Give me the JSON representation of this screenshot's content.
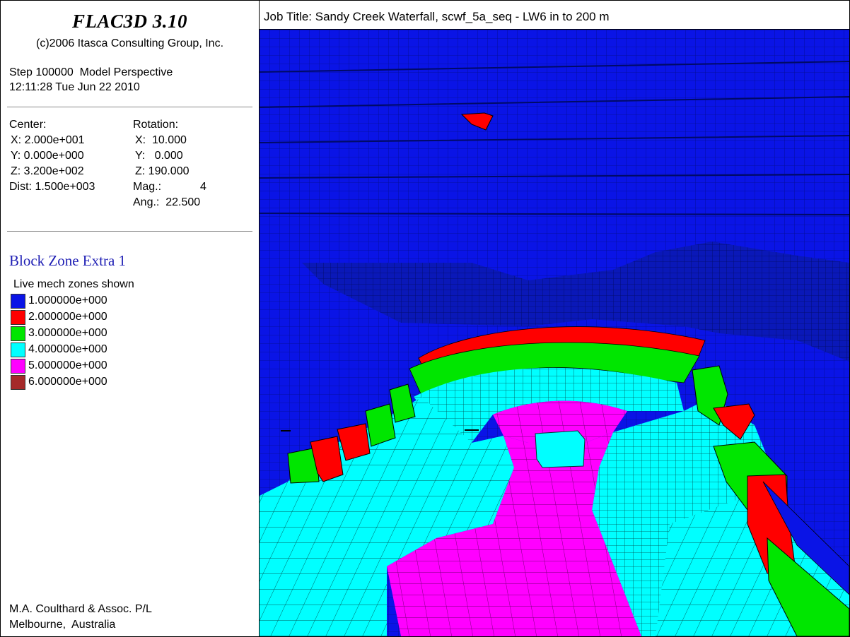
{
  "app": {
    "title": "FLAC3D 3.10",
    "copyright": "(c)2006 Itasca Consulting Group, Inc."
  },
  "step": {
    "line": "Step 100000  Model Perspective",
    "time": "12:11:28 Tue Jun 22 2010"
  },
  "view": {
    "center_label": "Center:",
    "rotation_label": "Rotation:",
    "center_x": "X: 2.000e+001",
    "center_y": "Y: 0.000e+000",
    "center_z": "Z: 3.200e+002",
    "dist": "Dist: 1.500e+003",
    "rot_x": "X:  10.000",
    "rot_y": "Y:   0.000",
    "rot_z": "Z: 190.000",
    "mag_label": "Mag.:",
    "mag_value": "4",
    "ang": "Ang.:  22.500"
  },
  "plot": {
    "title": "Block Zone Extra 1",
    "subtitle": "Live mech zones shown",
    "legend": [
      {
        "label": "1.000000e+000",
        "color": "#0a14e6"
      },
      {
        "label": "2.000000e+000",
        "color": "#ff0000"
      },
      {
        "label": "3.000000e+000",
        "color": "#00e600"
      },
      {
        "label": "4.000000e+000",
        "color": "#00ffff"
      },
      {
        "label": "5.000000e+000",
        "color": "#ff00ff"
      },
      {
        "label": "6.000000e+000",
        "color": "#a52a2a"
      }
    ]
  },
  "footer": {
    "company": "M.A. Coulthard & Assoc. P/L",
    "location": "Melbourne,  Australia"
  },
  "job": {
    "title": "Job Title: Sandy Creek Waterfall, scwf_5a_seq - LW6 in to 200 m"
  }
}
